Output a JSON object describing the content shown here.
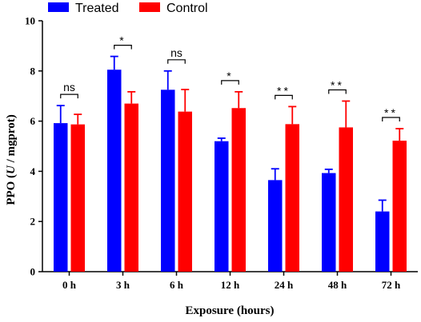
{
  "chart_data": {
    "type": "bar",
    "xlabel": "Exposure (hours)",
    "ylabel": "PPO (U / mgprot)",
    "ylabel_parts": [
      "PPO (",
      "U",
      " / mgprot)"
    ],
    "ylim": [
      0,
      10
    ],
    "yticks": [
      0,
      2,
      4,
      6,
      8,
      10
    ],
    "grid": false,
    "legend_position": "top-left",
    "categories": [
      "0 h",
      "3 h",
      "6 h",
      "12 h",
      "24 h",
      "48 h",
      "72 h"
    ],
    "series": [
      {
        "name": "Treated",
        "color": "#0000ff",
        "values": [
          5.92,
          8.05,
          7.25,
          5.2,
          3.65,
          3.93,
          2.4
        ],
        "errors": [
          0.7,
          0.53,
          0.75,
          0.12,
          0.45,
          0.15,
          0.45
        ]
      },
      {
        "name": "Control",
        "color": "#ff0000",
        "values": [
          5.87,
          6.7,
          6.38,
          6.52,
          5.88,
          5.75,
          5.22
        ],
        "errors": [
          0.4,
          0.47,
          0.88,
          0.65,
          0.7,
          1.05,
          0.48
        ]
      }
    ],
    "significance": [
      "ns",
      "*",
      "ns",
      "*",
      "**",
      "**",
      "**"
    ]
  }
}
